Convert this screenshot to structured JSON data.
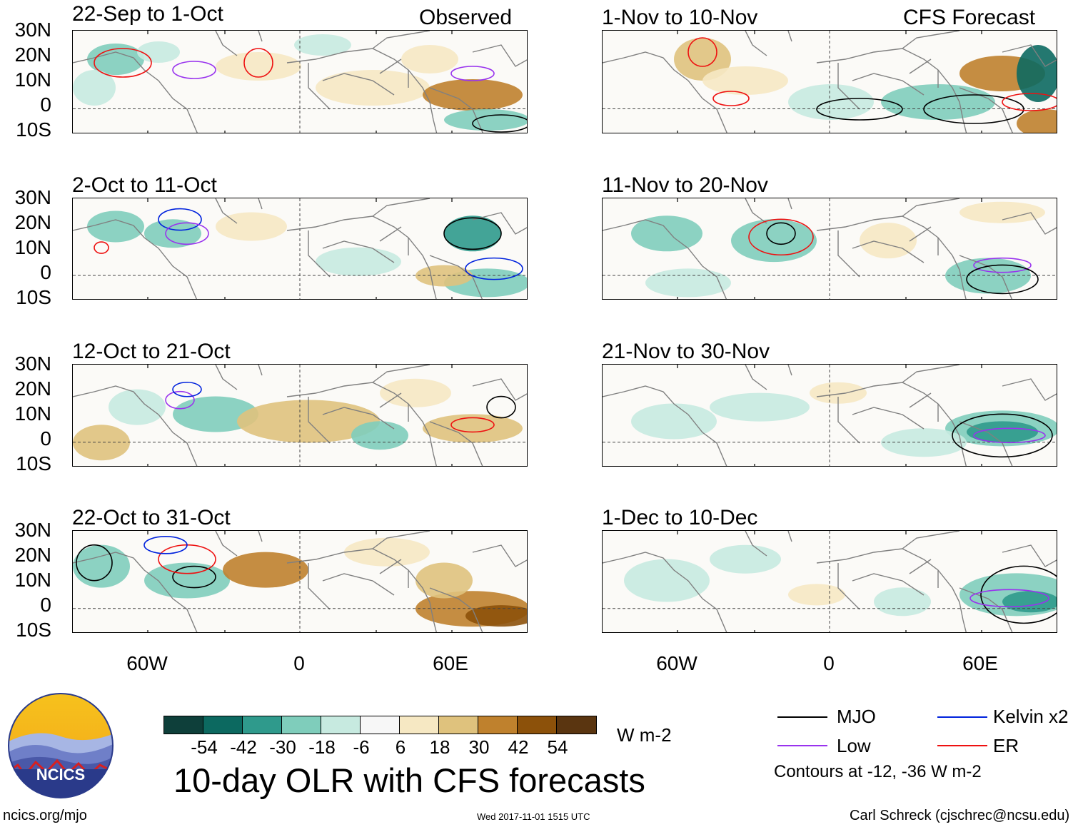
{
  "header": {
    "observed_label": "Observed",
    "forecast_label": "CFS Forecast"
  },
  "panels_left": [
    {
      "title": "22-Sep to 1-Oct"
    },
    {
      "title": "2-Oct to 11-Oct"
    },
    {
      "title": "12-Oct to 21-Oct"
    },
    {
      "title": "22-Oct to 31-Oct"
    }
  ],
  "panels_right": [
    {
      "title": "1-Nov to 10-Nov"
    },
    {
      "title": "11-Nov to 20-Nov"
    },
    {
      "title": "21-Nov to 30-Nov"
    },
    {
      "title": "1-Dec to 10-Dec"
    }
  ],
  "lat_labels": [
    "30N",
    "20N",
    "10N",
    "0",
    "10S"
  ],
  "lon_labels": [
    "60W",
    "0",
    "60E"
  ],
  "colorbar": {
    "colors": [
      "#0e3f3a",
      "#0c6960",
      "#2f9a8c",
      "#7fcdbb",
      "#c7eae0",
      "#f7f7f7",
      "#f6e8c3",
      "#dfc27d",
      "#bf812d",
      "#8c510a",
      "#5a3510"
    ],
    "labels": [
      "-54",
      "-42",
      "-30",
      "-18",
      "-6",
      "6",
      "18",
      "30",
      "42",
      "54"
    ],
    "units": "W m-2"
  },
  "title": "10-day OLR with CFS forecasts",
  "legend": {
    "items": [
      {
        "label": "MJO",
        "color": "#000000"
      },
      {
        "label": "Kelvin x2",
        "color": "#0022dd"
      },
      {
        "label": "Low",
        "color": "#9933ee"
      },
      {
        "label": "ER",
        "color": "#ee1111"
      }
    ],
    "note": "Contours at -12, -36 W m-2"
  },
  "logo_text": "NCICS",
  "footer": {
    "left": "ncics.org/mjo",
    "center": "Wed 2017-11-01 1515 UTC",
    "right": "Carl Schreck (cjschrec@ncsu.edu)"
  }
}
